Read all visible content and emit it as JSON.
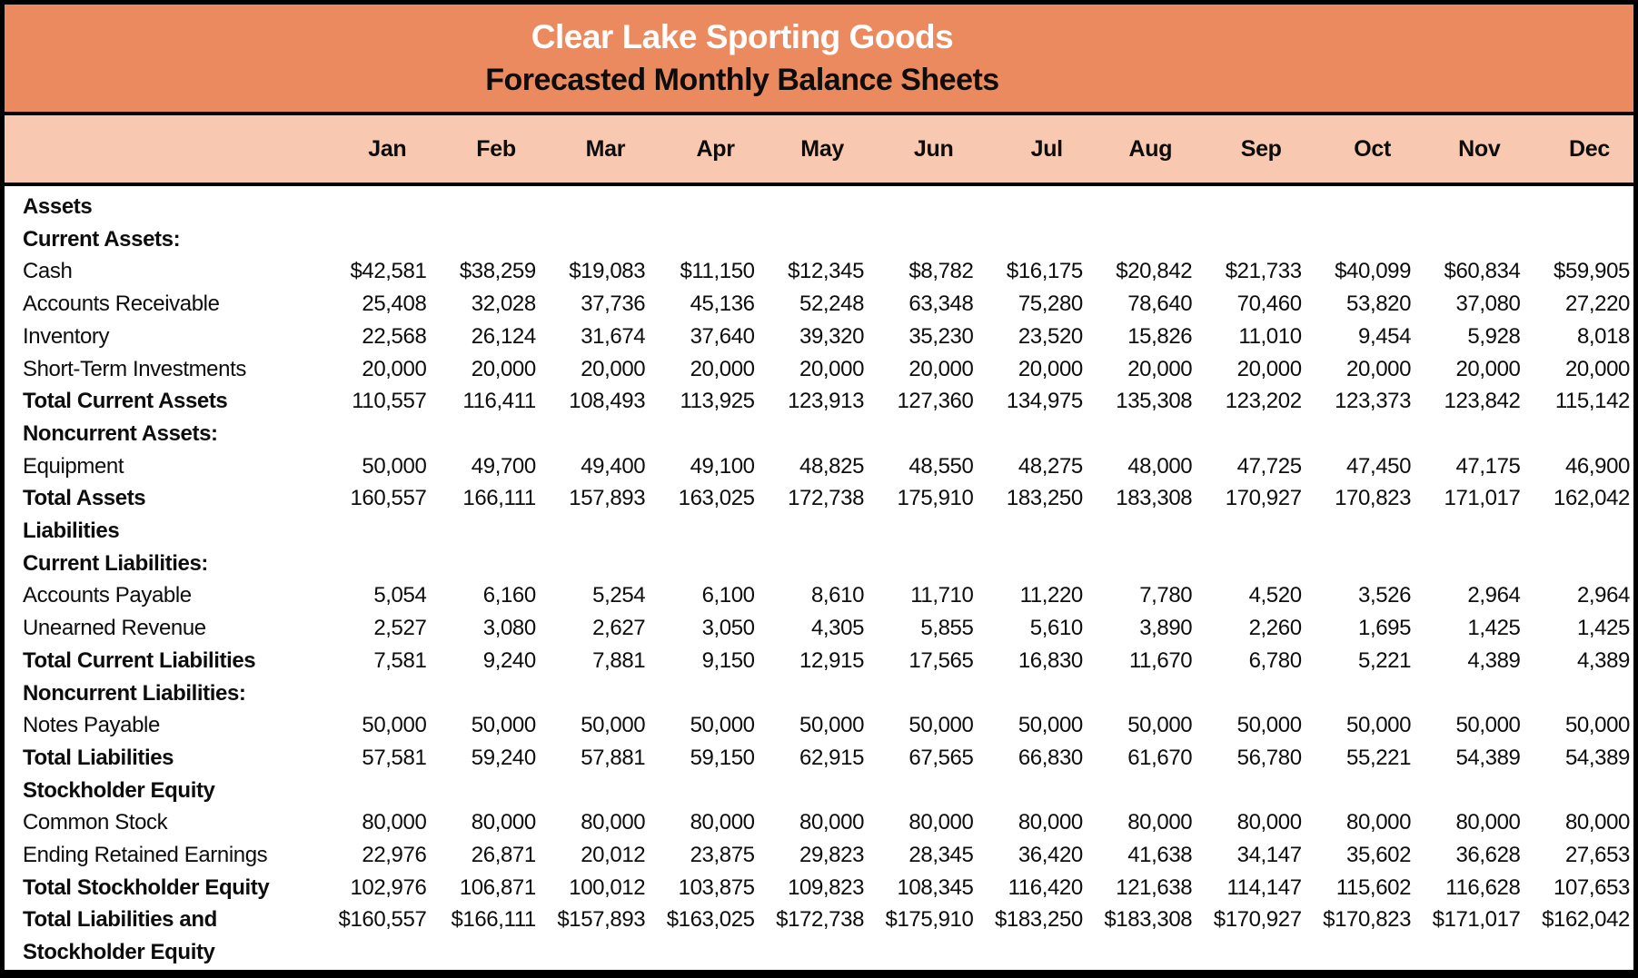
{
  "header": {
    "title": "Clear Lake Sporting Goods",
    "subtitle": "Forecasted Monthly Balance Sheets"
  },
  "colors": {
    "header_bg": "#EC8A5F",
    "month_band_bg": "#F8C9B0",
    "border": "#000000",
    "title_text": "#FFFFFF",
    "body_text": "#0D0D0D"
  },
  "months": [
    "Jan",
    "Feb",
    "Mar",
    "Apr",
    "May",
    "Jun",
    "Jul",
    "Aug",
    "Sep",
    "Oct",
    "Nov",
    "Dec"
  ],
  "rows": [
    {
      "label": "Assets",
      "bold": true,
      "values": []
    },
    {
      "label": "Current Assets:",
      "bold": true,
      "values": []
    },
    {
      "label": "Cash",
      "bold": false,
      "values": [
        "$42,581",
        "$38,259",
        "$19,083",
        "$11,150",
        "$12,345",
        "$8,782",
        "$16,175",
        "$20,842",
        "$21,733",
        "$40,099",
        "$60,834",
        "$59,905"
      ]
    },
    {
      "label": "Accounts Receivable",
      "bold": false,
      "values": [
        "25,408",
        "32,028",
        "37,736",
        "45,136",
        "52,248",
        "63,348",
        "75,280",
        "78,640",
        "70,460",
        "53,820",
        "37,080",
        "27,220"
      ]
    },
    {
      "label": "Inventory",
      "bold": false,
      "values": [
        "22,568",
        "26,124",
        "31,674",
        "37,640",
        "39,320",
        "35,230",
        "23,520",
        "15,826",
        "11,010",
        "9,454",
        "5,928",
        "8,018"
      ]
    },
    {
      "label": "Short-Term Investments",
      "bold": false,
      "values": [
        "20,000",
        "20,000",
        "20,000",
        "20,000",
        "20,000",
        "20,000",
        "20,000",
        "20,000",
        "20,000",
        "20,000",
        "20,000",
        "20,000"
      ]
    },
    {
      "label": "Total Current Assets",
      "bold": true,
      "values": [
        "110,557",
        "116,411",
        "108,493",
        "113,925",
        "123,913",
        "127,360",
        "134,975",
        "135,308",
        "123,202",
        "123,373",
        "123,842",
        "115,142"
      ]
    },
    {
      "label": "Noncurrent Assets:",
      "bold": true,
      "values": []
    },
    {
      "label": "Equipment",
      "bold": false,
      "values": [
        "50,000",
        "49,700",
        "49,400",
        "49,100",
        "48,825",
        "48,550",
        "48,275",
        "48,000",
        "47,725",
        "47,450",
        "47,175",
        "46,900"
      ]
    },
    {
      "label": "Total Assets",
      "bold": true,
      "values": [
        "160,557",
        "166,111",
        "157,893",
        "163,025",
        "172,738",
        "175,910",
        "183,250",
        "183,308",
        "170,927",
        "170,823",
        "171,017",
        "162,042"
      ]
    },
    {
      "label": "Liabilities",
      "bold": true,
      "values": []
    },
    {
      "label": "Current Liabilities:",
      "bold": true,
      "values": []
    },
    {
      "label": "Accounts Payable",
      "bold": false,
      "values": [
        "5,054",
        "6,160",
        "5,254",
        "6,100",
        "8,610",
        "11,710",
        "11,220",
        "7,780",
        "4,520",
        "3,526",
        "2,964",
        "2,964"
      ]
    },
    {
      "label": "Unearned Revenue",
      "bold": false,
      "values": [
        "2,527",
        "3,080",
        "2,627",
        "3,050",
        "4,305",
        "5,855",
        "5,610",
        "3,890",
        "2,260",
        "1,695",
        "1,425",
        "1,425"
      ]
    },
    {
      "label": "Total Current Liabilities",
      "bold": true,
      "values": [
        "7,581",
        "9,240",
        "7,881",
        "9,150",
        "12,915",
        "17,565",
        "16,830",
        "11,670",
        "6,780",
        "5,221",
        "4,389",
        "4,389"
      ]
    },
    {
      "label": "Noncurrent Liabilities:",
      "bold": true,
      "values": []
    },
    {
      "label": "Notes Payable",
      "bold": false,
      "values": [
        "50,000",
        "50,000",
        "50,000",
        "50,000",
        "50,000",
        "50,000",
        "50,000",
        "50,000",
        "50,000",
        "50,000",
        "50,000",
        "50,000"
      ]
    },
    {
      "label": "Total Liabilities",
      "bold": true,
      "values": [
        "57,581",
        "59,240",
        "57,881",
        "59,150",
        "62,915",
        "67,565",
        "66,830",
        "61,670",
        "56,780",
        "55,221",
        "54,389",
        "54,389"
      ]
    },
    {
      "label": "Stockholder Equity",
      "bold": true,
      "values": []
    },
    {
      "label": "Common Stock",
      "bold": false,
      "values": [
        "80,000",
        "80,000",
        "80,000",
        "80,000",
        "80,000",
        "80,000",
        "80,000",
        "80,000",
        "80,000",
        "80,000",
        "80,000",
        "80,000"
      ]
    },
    {
      "label": "Ending Retained Earnings",
      "bold": false,
      "values": [
        "22,976",
        "26,871",
        "20,012",
        "23,875",
        "29,823",
        "28,345",
        "36,420",
        "41,638",
        "34,147",
        "35,602",
        "36,628",
        "27,653"
      ]
    },
    {
      "label": "Total Stockholder Equity",
      "bold": true,
      "values": [
        "102,976",
        "106,871",
        "100,012",
        "103,875",
        "109,823",
        "108,345",
        "116,420",
        "121,638",
        "114,147",
        "115,602",
        "116,628",
        "107,653"
      ]
    },
    {
      "label": "Total Liabilities and",
      "label_line2": "Stockholder Equity",
      "bold": true,
      "values": [
        "$160,557",
        "$166,111",
        "$157,893",
        "$163,025",
        "$172,738",
        "$175,910",
        "$183,250",
        "$183,308",
        "$170,927",
        "$170,823",
        "$171,017",
        "$162,042"
      ]
    }
  ]
}
